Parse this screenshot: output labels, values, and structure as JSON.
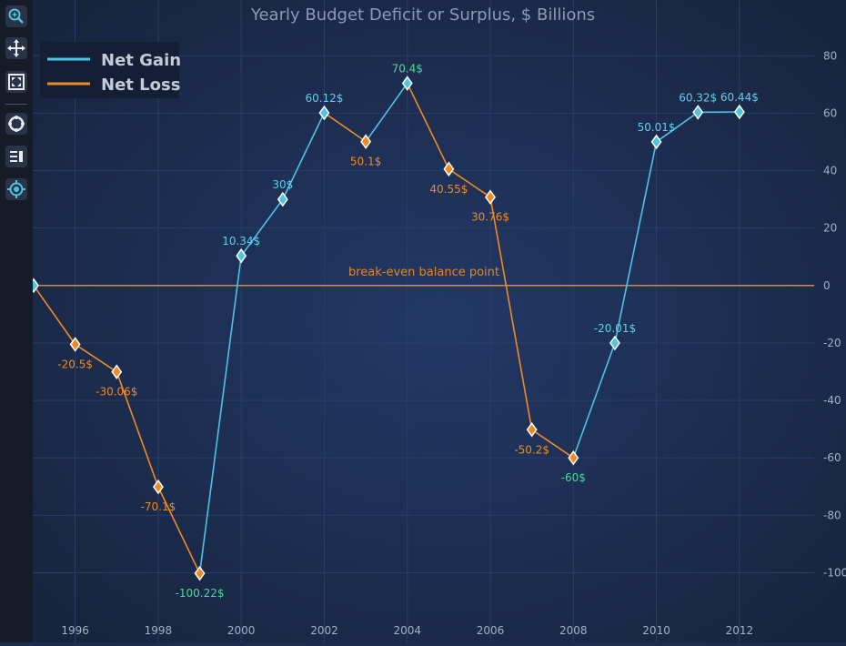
{
  "toolbar": {
    "items": [
      {
        "name": "zoom-icon",
        "active": true
      },
      {
        "name": "pan-icon",
        "active": false
      },
      {
        "name": "zoom-extents-icon",
        "active": false
      },
      {
        "name": "rollover-icon",
        "active": false
      },
      {
        "name": "legend-toggle-icon",
        "active": false
      },
      {
        "name": "cursor-icon",
        "active": true
      }
    ]
  },
  "colors": {
    "gain": "#4fc3e3",
    "loss": "#f08a24",
    "gain_label": "#5fd0e8",
    "loss_label": "#f08a24",
    "extreme_label": "#4fd6a0",
    "axis_text": "#a4b0c8",
    "title": "#8c9ab8",
    "baseline": "#e0892a"
  },
  "chart_data": {
    "type": "line",
    "title": "Yearly Budget Deficit or Surplus, $ Billions",
    "xlabel": "",
    "ylabel": "",
    "xlim": [
      1995,
      2013.8
    ],
    "ylim": [
      -116,
      88
    ],
    "x_ticks": [
      1996,
      1998,
      2000,
      2002,
      2004,
      2006,
      2008,
      2010,
      2012
    ],
    "y_ticks": [
      80,
      60,
      40,
      20,
      0,
      -20,
      -40,
      -60,
      -80,
      -100
    ],
    "y_axis_position": "right",
    "grid": true,
    "legend_position": "top-left",
    "series": [
      {
        "name": "Net Gain",
        "color_key": "gain"
      },
      {
        "name": "Net Loss",
        "color_key": "loss"
      }
    ],
    "points": [
      {
        "x": 1995,
        "y": 0,
        "label": "",
        "marker": "gain",
        "label_pos": "below",
        "label_color": "loss_label"
      },
      {
        "x": 1996,
        "y": -20.5,
        "label": "-20.5$",
        "marker": "loss",
        "label_pos": "below",
        "label_color": "loss_label"
      },
      {
        "x": 1997,
        "y": -30.06,
        "label": "-30.06$",
        "marker": "loss",
        "label_pos": "below",
        "label_color": "loss_label"
      },
      {
        "x": 1998,
        "y": -70.1,
        "label": "-70.1$",
        "marker": "loss",
        "label_pos": "below",
        "label_color": "loss_label"
      },
      {
        "x": 1999,
        "y": -100.22,
        "label": "-100.22$",
        "marker": "loss",
        "label_pos": "below",
        "label_color": "extreme_label"
      },
      {
        "x": 2000,
        "y": 10.34,
        "label": "10.34$",
        "marker": "gain",
        "label_pos": "above",
        "label_color": "gain_label"
      },
      {
        "x": 2001,
        "y": 30,
        "label": "30$",
        "marker": "gain",
        "label_pos": "above",
        "label_color": "gain_label"
      },
      {
        "x": 2002,
        "y": 60.12,
        "label": "60.12$",
        "marker": "gain",
        "label_pos": "above",
        "label_color": "gain_label"
      },
      {
        "x": 2003,
        "y": 50.1,
        "label": "50.1$",
        "marker": "loss",
        "label_pos": "below",
        "label_color": "loss_label"
      },
      {
        "x": 2004,
        "y": 70.4,
        "label": "70.4$",
        "marker": "gain",
        "label_pos": "above",
        "label_color": "extreme_label"
      },
      {
        "x": 2005,
        "y": 40.55,
        "label": "40.55$",
        "marker": "loss",
        "label_pos": "below",
        "label_color": "loss_label"
      },
      {
        "x": 2006,
        "y": 30.76,
        "label": "30.76$",
        "marker": "loss",
        "label_pos": "below",
        "label_color": "loss_label"
      },
      {
        "x": 2007,
        "y": -50.2,
        "label": "-50.2$",
        "marker": "loss",
        "label_pos": "below",
        "label_color": "loss_label"
      },
      {
        "x": 2008,
        "y": -60,
        "label": "-60$",
        "marker": "loss",
        "label_pos": "below",
        "label_color": "extreme_label"
      },
      {
        "x": 2009,
        "y": -20.01,
        "label": "-20.01$",
        "marker": "gain",
        "label_pos": "above",
        "label_color": "gain_label"
      },
      {
        "x": 2010,
        "y": 50.01,
        "label": "50.01$",
        "marker": "gain",
        "label_pos": "above",
        "label_color": "gain_label"
      },
      {
        "x": 2011,
        "y": 60.32,
        "label": "60.32$",
        "marker": "gain",
        "label_pos": "above",
        "label_color": "gain_label"
      },
      {
        "x": 2012,
        "y": 60.44,
        "label": "60.44$",
        "marker": "gain",
        "label_pos": "above",
        "label_color": "gain_label"
      }
    ],
    "baseline": {
      "y": 0,
      "label": "break-even balance point"
    }
  }
}
